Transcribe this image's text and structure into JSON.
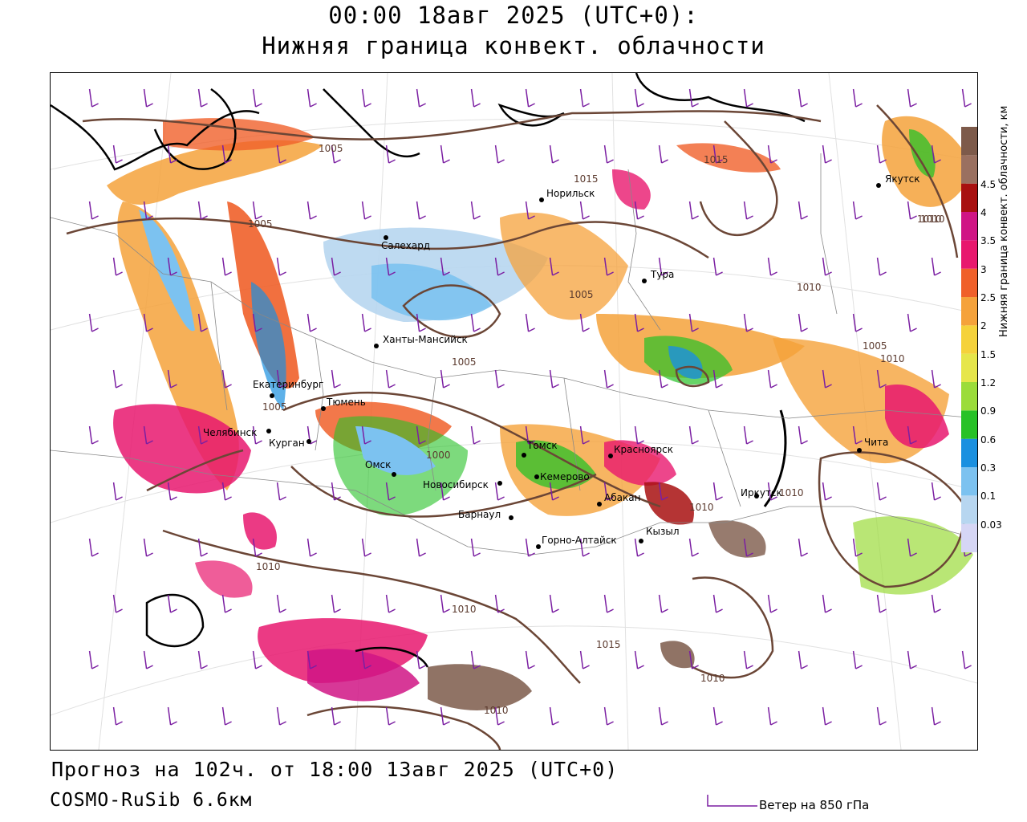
{
  "header": {
    "time_title": "00:00 18авг 2025 (UTC+0):",
    "field_title": "Нижняя граница конвект. облачности"
  },
  "footer": {
    "forecast_text": "Прогноз на 102ч. от 18:00 13авг 2025 (UTC+0)",
    "model_text": "COSMO-RuSib 6.6км"
  },
  "legend": {
    "wind_text": "Ветер на 850 гПа",
    "wind_color": "#7b1fa2"
  },
  "scale": {
    "title": "Нижняя граница конвект. облачности, км",
    "levels": [
      {
        "label": "0.03",
        "color": "#d6d6f5"
      },
      {
        "label": "0.1",
        "color": "#b7d6f0"
      },
      {
        "label": "0.3",
        "color": "#7cc2f0"
      },
      {
        "label": "0.6",
        "color": "#1a90e0"
      },
      {
        "label": "0.9",
        "color": "#27c227"
      },
      {
        "label": "1.2",
        "color": "#9bdc3a"
      },
      {
        "label": "1.5",
        "color": "#e6e64a"
      },
      {
        "label": "2",
        "color": "#f5d23b"
      },
      {
        "label": "2.5",
        "color": "#f5a23b"
      },
      {
        "label": "3",
        "color": "#f0602a"
      },
      {
        "label": "3.5",
        "color": "#e8186e"
      },
      {
        "label": "4",
        "color": "#d01585"
      },
      {
        "label": "4.5",
        "color": "#a81010"
      },
      {
        "label": "",
        "color": "#9a7060"
      },
      {
        "label": "",
        "color": "#7d5a4a"
      }
    ]
  },
  "cities": [
    {
      "name": "Якутск"
    },
    {
      "name": "Норильск"
    },
    {
      "name": "Салехард"
    },
    {
      "name": "Тура"
    },
    {
      "name": "Ханты-Мансийск"
    },
    {
      "name": "Екатеринбург"
    },
    {
      "name": "Тюмень"
    },
    {
      "name": "Челябинск"
    },
    {
      "name": "Курган"
    },
    {
      "name": "Омск"
    },
    {
      "name": "Новосибирск"
    },
    {
      "name": "Томск"
    },
    {
      "name": "Кемерово"
    },
    {
      "name": "Красноярск"
    },
    {
      "name": "Абакан"
    },
    {
      "name": "Барнаул"
    },
    {
      "name": "Горно-Алтайск"
    },
    {
      "name": "Кызыл"
    },
    {
      "name": "Иркутск"
    },
    {
      "name": "Чита"
    }
  ],
  "isobars": [
    {
      "label": "1005"
    },
    {
      "label": "1005"
    },
    {
      "label": "1015"
    },
    {
      "label": "1015"
    },
    {
      "label": "1010"
    },
    {
      "label": "1010"
    },
    {
      "label": "1005"
    },
    {
      "label": "1005"
    },
    {
      "label": "1005"
    },
    {
      "label": "1010"
    },
    {
      "label": "1000"
    },
    {
      "label": "1010"
    },
    {
      "label": "1010"
    },
    {
      "label": "1010"
    },
    {
      "label": "1010"
    },
    {
      "label": "1015"
    },
    {
      "label": "1010"
    },
    {
      "label": "1010"
    },
    {
      "label": "1010"
    },
    {
      "label": "1005"
    }
  ]
}
